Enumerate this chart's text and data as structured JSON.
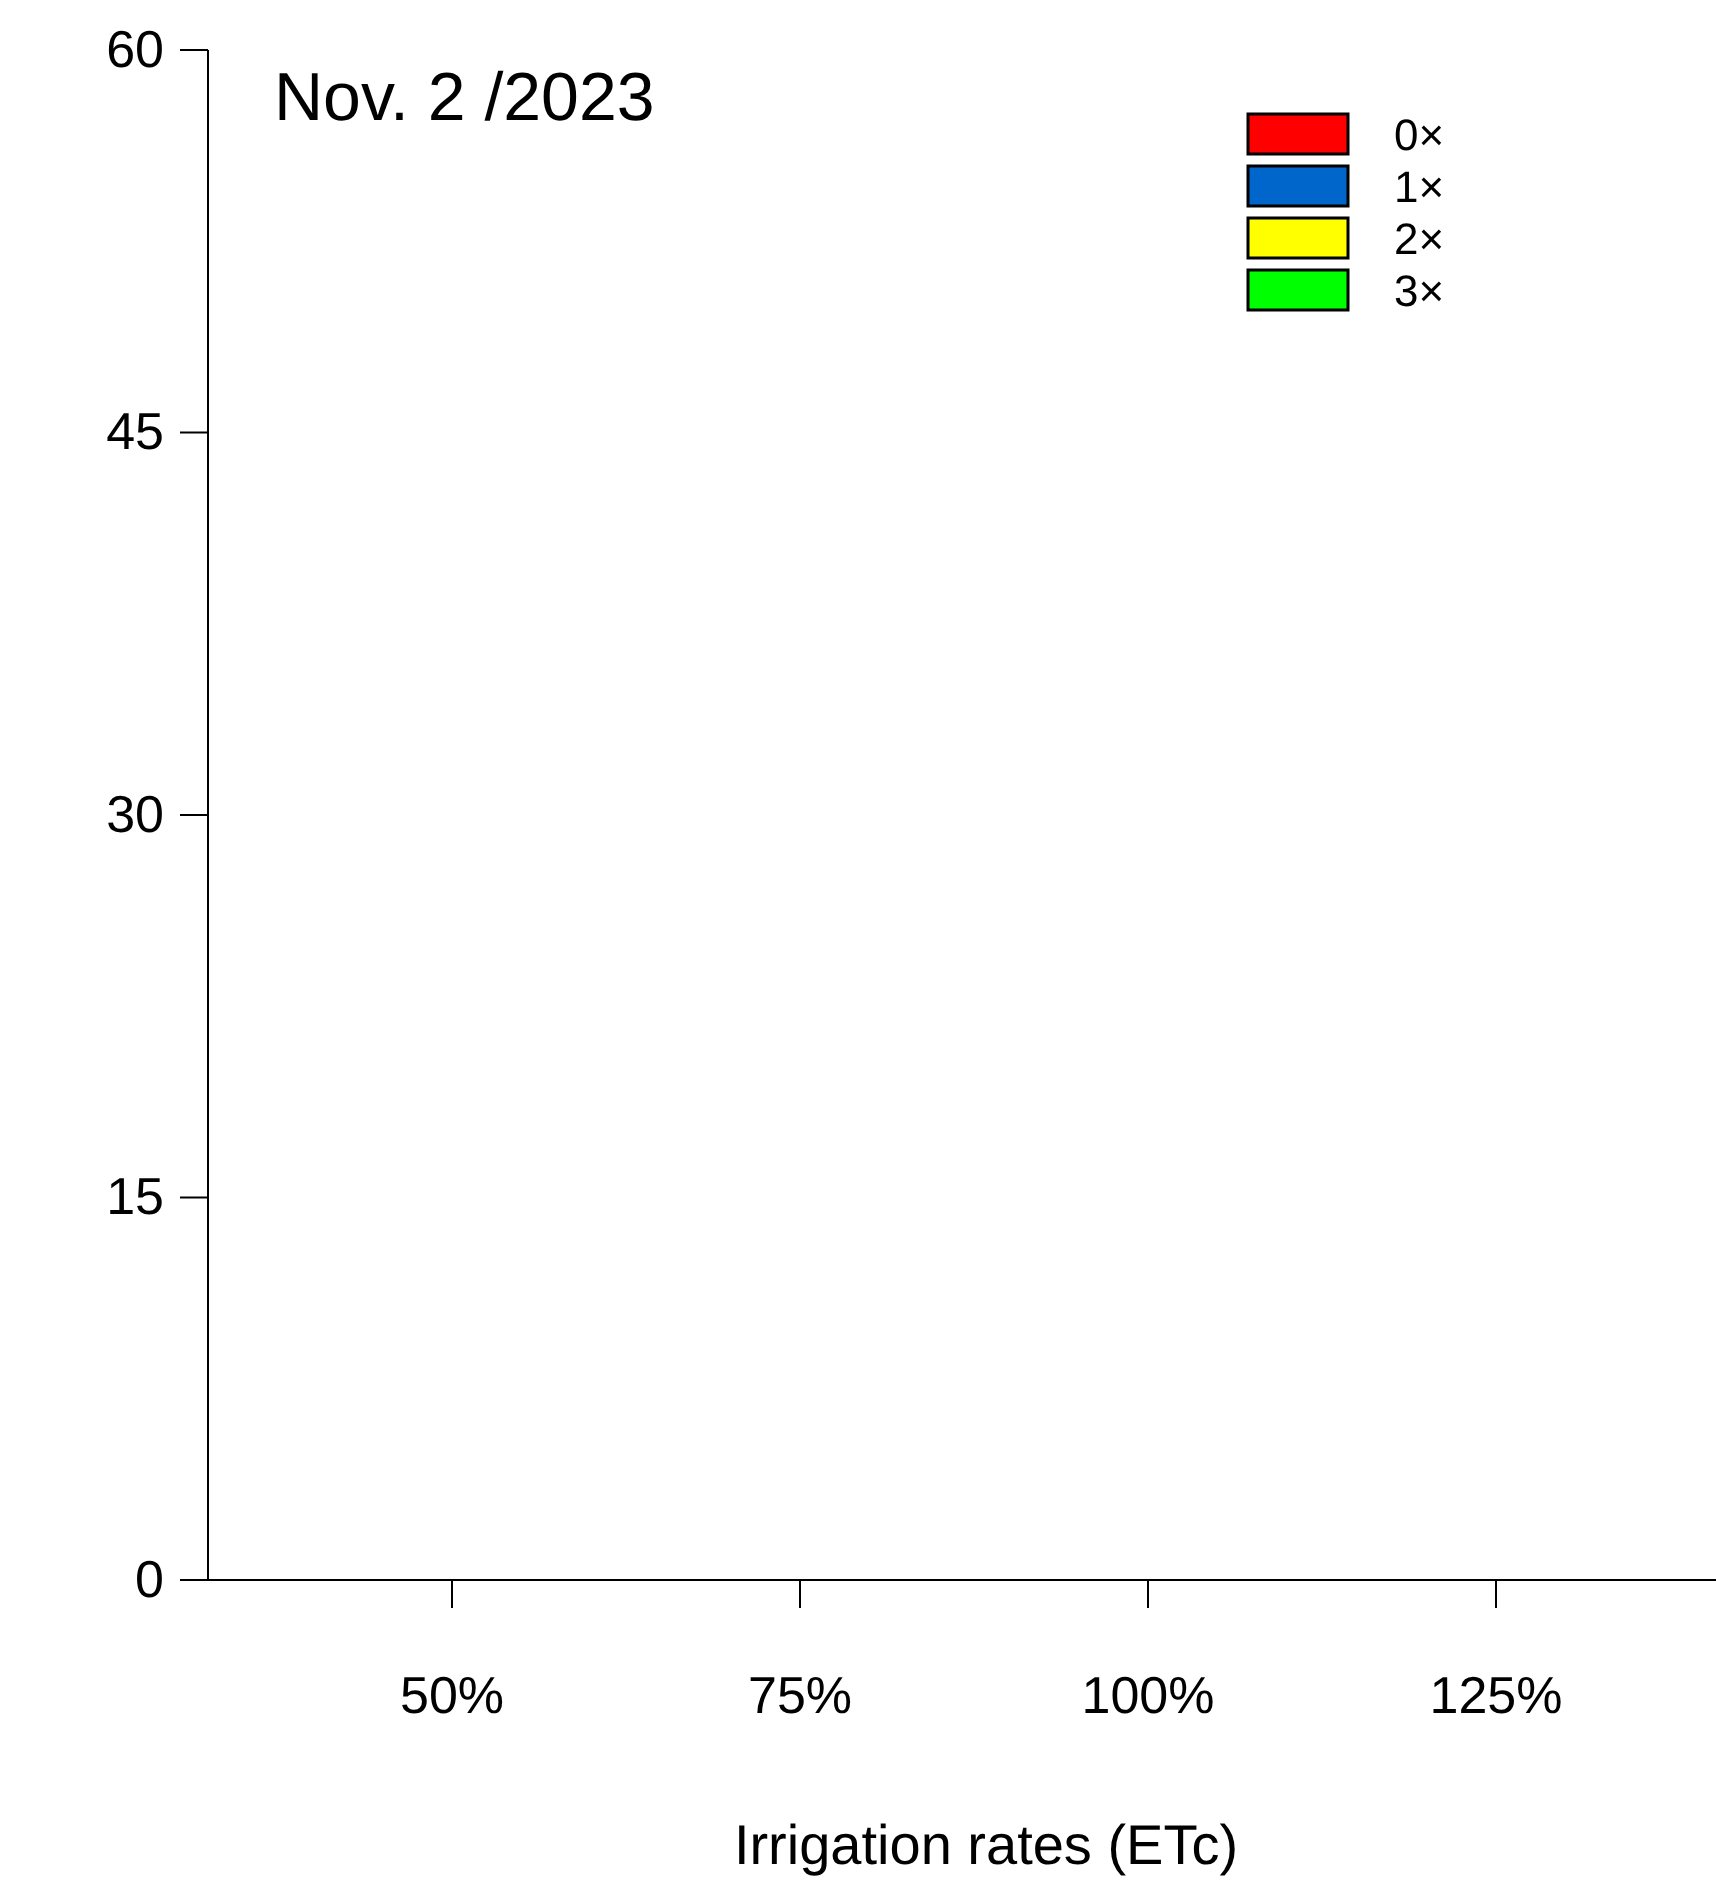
{
  "chart_data": {
    "type": "bar",
    "title": "Nov. 2 /2023",
    "xlabel": "Irrigation rates (ETc)",
    "categories": [
      "50%",
      "75%",
      "100%",
      "125%"
    ],
    "series": [
      {
        "name": "0×",
        "color": "#ff0000",
        "values": [
          null,
          null,
          null,
          null
        ]
      },
      {
        "name": "1×",
        "color": "#0066cc",
        "values": [
          null,
          null,
          null,
          null
        ]
      },
      {
        "name": "2×",
        "color": "#ffff00",
        "values": [
          null,
          null,
          null,
          null
        ]
      },
      {
        "name": "3×",
        "color": "#00ff00",
        "values": [
          null,
          null,
          null,
          null
        ]
      }
    ],
    "ylim": [
      0,
      60
    ],
    "yticks": [
      0,
      15,
      30,
      45,
      60
    ],
    "grid": false,
    "legend": "top right"
  }
}
